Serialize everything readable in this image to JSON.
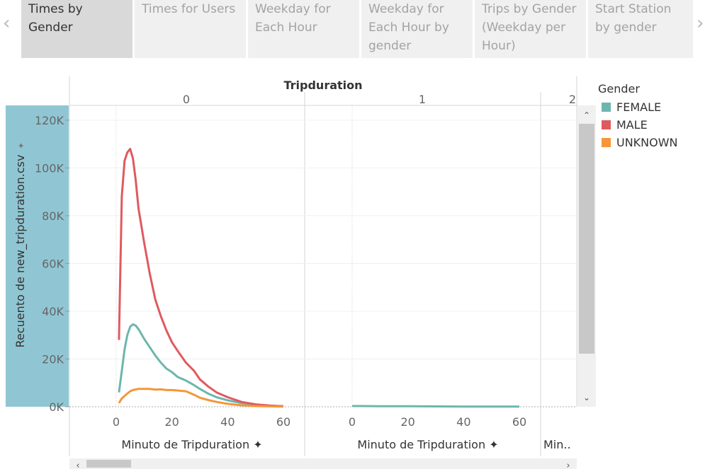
{
  "tabs": [
    {
      "label": "Times by Gender",
      "active": true
    },
    {
      "label": "Times for Users",
      "active": false
    },
    {
      "label": "Weekday for Each Hour",
      "active": false
    },
    {
      "label": "Weekday for Each Hour by gender",
      "active": false
    },
    {
      "label": "Trips by Gender (Weekday per Hour)",
      "active": false
    },
    {
      "label": "Start Station by gender",
      "active": false
    }
  ],
  "nav": {
    "prev_icon": "chevron-left-icon",
    "next_icon": "chevron-right-icon"
  },
  "chart_data": {
    "type": "line",
    "title": "",
    "column_header": "Tripduration",
    "panels": [
      "0",
      "1",
      "2"
    ],
    "xlabel": "Minuto de Tripduration",
    "xlabel_truncated": "Min..",
    "ylabel": "Recuento de new_tripduration.csv",
    "ylim": [
      0,
      125000
    ],
    "yticks": [
      0,
      20000,
      40000,
      60000,
      80000,
      100000,
      120000
    ],
    "ytick_labels": [
      "0K",
      "20K",
      "40K",
      "60K",
      "80K",
      "100K",
      "120K"
    ],
    "xlim": [
      -15,
      70
    ],
    "xticks": [
      0,
      20,
      40,
      60
    ],
    "grid": true,
    "legend": {
      "title": "Gender",
      "position": "right"
    },
    "colors": {
      "FEMALE": "#6cb6ad",
      "MALE": "#df5a5f",
      "UNKNOWN": "#f5963a"
    },
    "series": [
      {
        "name": "FEMALE",
        "panel": "0",
        "x": [
          1,
          2,
          3,
          4,
          5,
          6,
          7,
          8,
          10,
          12,
          14,
          16,
          18,
          20,
          22,
          25,
          28,
          30,
          33,
          36,
          40,
          45,
          50,
          55,
          60
        ],
        "y": [
          6000,
          15000,
          24000,
          30000,
          33500,
          34500,
          34000,
          32500,
          28500,
          25000,
          21500,
          18500,
          16000,
          14500,
          12500,
          11000,
          9000,
          7500,
          5500,
          4000,
          2700,
          1500,
          800,
          400,
          200
        ]
      },
      {
        "name": "MALE",
        "panel": "0",
        "x": [
          1,
          2,
          3,
          4,
          5,
          6,
          7,
          8,
          10,
          12,
          14,
          16,
          18,
          20,
          22,
          25,
          28,
          30,
          33,
          36,
          40,
          45,
          50,
          55,
          60
        ],
        "y": [
          28000,
          88000,
          103000,
          106500,
          108000,
          104000,
          95000,
          83000,
          69000,
          56000,
          45000,
          38000,
          32000,
          27000,
          23500,
          18500,
          15000,
          11500,
          8500,
          6000,
          4000,
          2000,
          1000,
          500,
          200
        ]
      },
      {
        "name": "UNKNOWN",
        "panel": "0",
        "x": [
          1,
          2,
          3,
          4,
          5,
          6,
          8,
          10,
          12,
          14,
          16,
          18,
          20,
          22,
          25,
          28,
          30,
          33,
          36,
          40,
          45,
          50,
          55,
          60
        ],
        "y": [
          1500,
          3500,
          4500,
          5500,
          6500,
          7000,
          7500,
          7500,
          7500,
          7200,
          7300,
          7000,
          7000,
          6800,
          6500,
          5000,
          3800,
          2800,
          2000,
          1200,
          600,
          300,
          150,
          50
        ]
      },
      {
        "name": "FEMALE",
        "panel": "1",
        "x": [
          0,
          10,
          20,
          30,
          40,
          50,
          60
        ],
        "y": [
          300,
          250,
          200,
          150,
          100,
          80,
          50
        ]
      }
    ]
  }
}
